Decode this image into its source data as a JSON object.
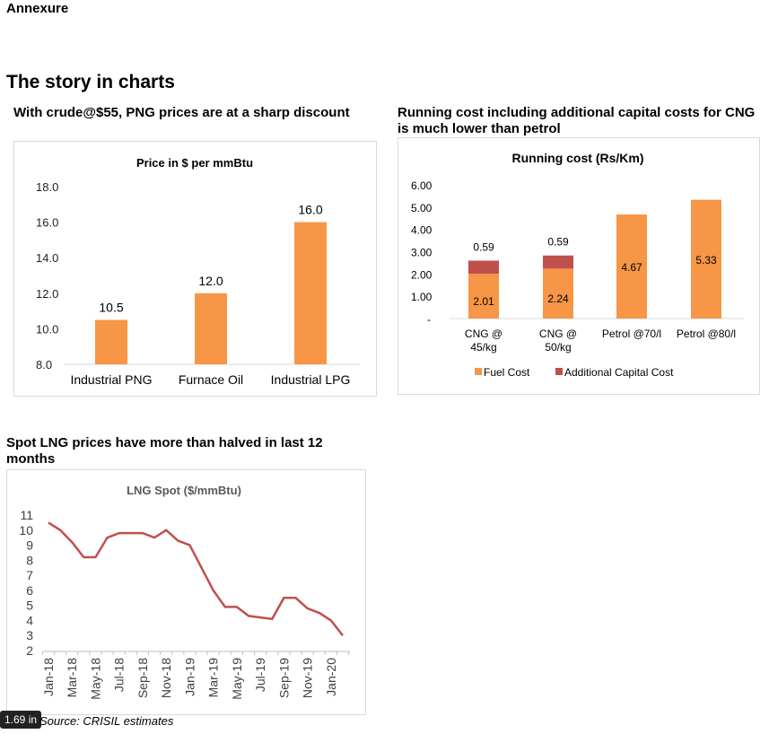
{
  "header": {
    "annexure": "Annexure",
    "section_title": "The story in charts"
  },
  "source": "Source: CRISIL estimates",
  "tooltip": "1.69 in",
  "chart_data": [
    {
      "type": "bar",
      "heading": "With crude@$55, PNG prices are at a sharp discount",
      "title": "Price in $ per mmBtu",
      "categories": [
        "Industrial PNG",
        "Furnace Oil",
        "Industrial LPG"
      ],
      "values": [
        10.5,
        12.0,
        16.0
      ],
      "value_labels": [
        "10.5",
        "12.0",
        "16.0"
      ],
      "ylim": [
        8,
        18
      ],
      "yticks": [
        "8.0",
        "10.0",
        "12.0",
        "14.0",
        "16.0",
        "18.0"
      ],
      "color": "#F79646",
      "grid": false
    },
    {
      "type": "bar",
      "stacked": true,
      "heading": "Running cost including additional capital costs for CNG is much lower than petrol",
      "title": "Running cost (Rs/Km)",
      "categories": [
        [
          "CNG @",
          "45/kg"
        ],
        [
          "CNG @",
          "50/kg"
        ],
        [
          "Petrol @70/l"
        ],
        [
          "Petrol @80/l"
        ]
      ],
      "series": [
        {
          "name": "Fuel Cost",
          "values": [
            2.01,
            2.24,
            4.67,
            5.33
          ],
          "labels": [
            "2.01",
            "2.24",
            "4.67",
            "5.33"
          ],
          "color": "#F79646"
        },
        {
          "name": "Additional Capital Cost",
          "values": [
            0.59,
            0.59,
            0,
            0
          ],
          "labels": [
            "0.59",
            "0.59",
            "",
            ""
          ],
          "color": "#C0504D"
        }
      ],
      "ylim": [
        0,
        6
      ],
      "yticks": [
        "-",
        "1.00",
        "2.00",
        "3.00",
        "4.00",
        "5.00",
        "6.00"
      ],
      "legend": "bottom"
    },
    {
      "type": "line",
      "heading": "Spot LNG prices have more than halved in last 12 months",
      "title": "LNG Spot  ($/mmBtu)",
      "x": [
        "Jan-18",
        "Feb-18",
        "Mar-18",
        "Apr-18",
        "May-18",
        "Jun-18",
        "Jul-18",
        "Aug-18",
        "Sep-18",
        "Oct-18",
        "Nov-18",
        "Dec-18",
        "Jan-19",
        "Feb-19",
        "Mar-19",
        "Apr-19",
        "May-19",
        "Jun-19",
        "Jul-19",
        "Aug-19",
        "Sep-19",
        "Oct-19",
        "Nov-19",
        "Dec-19",
        "Jan-20",
        "Feb-20"
      ],
      "values": [
        10.5,
        10.0,
        9.2,
        8.2,
        8.2,
        9.5,
        9.8,
        9.8,
        9.8,
        9.5,
        10.0,
        9.3,
        9.0,
        7.5,
        6.0,
        4.9,
        4.9,
        4.3,
        4.2,
        4.1,
        5.5,
        5.5,
        4.8,
        4.5,
        4.0,
        3.0
      ],
      "xtick_labels": [
        "Jan-18",
        "Mar-18",
        "May-18",
        "Jul-18",
        "Sep-18",
        "Nov-18",
        "Jan-19",
        "Mar-19",
        "May-19",
        "Jul-19",
        "Sep-19",
        "Nov-19",
        "Jan-20"
      ],
      "ylim": [
        2,
        11
      ],
      "yticks": [
        "2",
        "3",
        "4",
        "5",
        "6",
        "7",
        "8",
        "9",
        "10",
        "11"
      ],
      "color": "#C0504D"
    }
  ]
}
